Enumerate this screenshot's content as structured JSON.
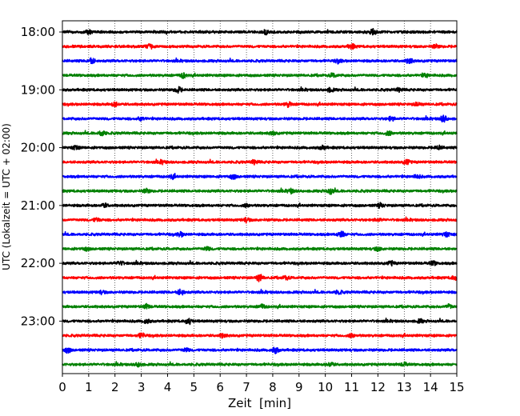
{
  "chart_data": {
    "type": "line",
    "title": "",
    "xlabel": "Zeit  [min]",
    "ylabel": "UTC (Lokalzeit = UTC + 02:00)",
    "xlim": [
      0,
      15
    ],
    "x_ticks": [
      0,
      1,
      2,
      3,
      4,
      5,
      6,
      7,
      8,
      9,
      10,
      11,
      12,
      13,
      14,
      15
    ],
    "x_tick_labels": [
      "0",
      "1",
      "2",
      "3",
      "4",
      "5",
      "6",
      "7",
      "8",
      "9",
      "10",
      "11",
      "12",
      "13",
      "14",
      "15"
    ],
    "y_tick_labels": [
      "18:00",
      "19:00",
      "20:00",
      "21:00",
      "22:00",
      "23:00"
    ],
    "vertical_grid": "dotted",
    "trace_colors": [
      "#000000",
      "#ff0000",
      "#0000ff",
      "#008000"
    ],
    "traces": [
      {
        "start": "18:00",
        "color": "#000000",
        "events": [
          {
            "x": 11.8,
            "amp": 0.8
          },
          {
            "x": 7.7,
            "amp": 0.6
          },
          {
            "x": 1.0,
            "amp": 0.5
          }
        ]
      },
      {
        "start": "18:15",
        "color": "#ff0000",
        "events": [
          {
            "x": 3.3,
            "amp": 0.6
          },
          {
            "x": 11.0,
            "amp": 0.7
          },
          {
            "x": 14.2,
            "amp": 0.5
          }
        ]
      },
      {
        "start": "18:30",
        "color": "#0000ff",
        "events": [
          {
            "x": 1.1,
            "amp": 0.9
          },
          {
            "x": 13.2,
            "amp": 0.7
          },
          {
            "x": 10.5,
            "amp": 0.5
          }
        ]
      },
      {
        "start": "18:45",
        "color": "#008000",
        "events": [
          {
            "x": 4.6,
            "amp": 0.7
          },
          {
            "x": 10.3,
            "amp": 0.6
          },
          {
            "x": 13.8,
            "amp": 0.5
          }
        ]
      },
      {
        "start": "19:00",
        "color": "#000000",
        "events": [
          {
            "x": 4.4,
            "amp": 0.9
          },
          {
            "x": 10.2,
            "amp": 0.6
          },
          {
            "x": 12.8,
            "amp": 0.5
          }
        ]
      },
      {
        "start": "19:15",
        "color": "#ff0000",
        "events": [
          {
            "x": 2.0,
            "amp": 0.6
          },
          {
            "x": 8.6,
            "amp": 0.7
          },
          {
            "x": 13.5,
            "amp": 0.5
          }
        ]
      },
      {
        "start": "19:30",
        "color": "#0000ff",
        "events": [
          {
            "x": 14.5,
            "amp": 1.0
          },
          {
            "x": 12.5,
            "amp": 0.6
          },
          {
            "x": 3.0,
            "amp": 0.5
          }
        ]
      },
      {
        "start": "19:45",
        "color": "#008000",
        "events": [
          {
            "x": 1.5,
            "amp": 0.8
          },
          {
            "x": 12.4,
            "amp": 0.6
          },
          {
            "x": 8.0,
            "amp": 0.5
          }
        ]
      },
      {
        "start": "20:00",
        "color": "#000000",
        "events": [
          {
            "x": 0.5,
            "amp": 0.5
          },
          {
            "x": 9.9,
            "amp": 0.6
          },
          {
            "x": 14.3,
            "amp": 0.6
          }
        ]
      },
      {
        "start": "20:15",
        "color": "#ff0000",
        "events": [
          {
            "x": 7.3,
            "amp": 0.6
          },
          {
            "x": 13.1,
            "amp": 0.7
          },
          {
            "x": 3.8,
            "amp": 0.4
          }
        ]
      },
      {
        "start": "20:30",
        "color": "#0000ff",
        "events": [
          {
            "x": 6.5,
            "amp": 0.6
          },
          {
            "x": 4.2,
            "amp": 0.5
          },
          {
            "x": 13.5,
            "amp": 0.5
          }
        ]
      },
      {
        "start": "20:45",
        "color": "#008000",
        "events": [
          {
            "x": 3.2,
            "amp": 0.6
          },
          {
            "x": 10.2,
            "amp": 0.8
          },
          {
            "x": 8.7,
            "amp": 0.6
          }
        ]
      },
      {
        "start": "21:00",
        "color": "#000000",
        "events": [
          {
            "x": 12.1,
            "amp": 0.6
          },
          {
            "x": 1.6,
            "amp": 0.5
          },
          {
            "x": 7.0,
            "amp": 0.4
          }
        ]
      },
      {
        "start": "21:15",
        "color": "#ff0000",
        "events": [
          {
            "x": 7.0,
            "amp": 0.6
          },
          {
            "x": 1.3,
            "amp": 0.5
          },
          {
            "x": 12.0,
            "amp": 0.4
          }
        ]
      },
      {
        "start": "21:30",
        "color": "#0000ff",
        "events": [
          {
            "x": 10.6,
            "amp": 1.0
          },
          {
            "x": 4.5,
            "amp": 0.6
          },
          {
            "x": 14.6,
            "amp": 0.6
          }
        ]
      },
      {
        "start": "21:45",
        "color": "#008000",
        "events": [
          {
            "x": 5.5,
            "amp": 0.5
          },
          {
            "x": 0.9,
            "amp": 0.4
          },
          {
            "x": 12.0,
            "amp": 0.5
          }
        ]
      },
      {
        "start": "22:00",
        "color": "#000000",
        "events": [
          {
            "x": 2.2,
            "amp": 0.6
          },
          {
            "x": 12.5,
            "amp": 0.6
          },
          {
            "x": 14.1,
            "amp": 0.6
          }
        ]
      },
      {
        "start": "22:15",
        "color": "#ff0000",
        "events": [
          {
            "x": 7.5,
            "amp": 1.0
          },
          {
            "x": 8.5,
            "amp": 0.5
          },
          {
            "x": 14.9,
            "amp": 0.5
          }
        ]
      },
      {
        "start": "22:30",
        "color": "#0000ff",
        "events": [
          {
            "x": 4.5,
            "amp": 0.9
          },
          {
            "x": 10.5,
            "amp": 0.5
          },
          {
            "x": 1.5,
            "amp": 0.4
          }
        ]
      },
      {
        "start": "22:45",
        "color": "#008000",
        "events": [
          {
            "x": 3.2,
            "amp": 0.6
          },
          {
            "x": 7.6,
            "amp": 0.6
          },
          {
            "x": 14.7,
            "amp": 0.6
          }
        ]
      },
      {
        "start": "23:00",
        "color": "#000000",
        "events": [
          {
            "x": 4.8,
            "amp": 0.8
          },
          {
            "x": 3.2,
            "amp": 0.6
          },
          {
            "x": 13.6,
            "amp": 0.5
          }
        ]
      },
      {
        "start": "23:15",
        "color": "#ff0000",
        "events": [
          {
            "x": 3.0,
            "amp": 0.7
          },
          {
            "x": 6.1,
            "amp": 0.5
          },
          {
            "x": 11.0,
            "amp": 0.5
          }
        ]
      },
      {
        "start": "23:30",
        "color": "#0000ff",
        "events": [
          {
            "x": 0.2,
            "amp": 0.7
          },
          {
            "x": 8.1,
            "amp": 0.9
          },
          {
            "x": 4.7,
            "amp": 0.5
          }
        ]
      },
      {
        "start": "23:45",
        "color": "#008000",
        "events": [
          {
            "x": 2.9,
            "amp": 0.6
          },
          {
            "x": 10.2,
            "amp": 0.6
          },
          {
            "x": 13.0,
            "amp": 0.5
          }
        ]
      }
    ]
  }
}
